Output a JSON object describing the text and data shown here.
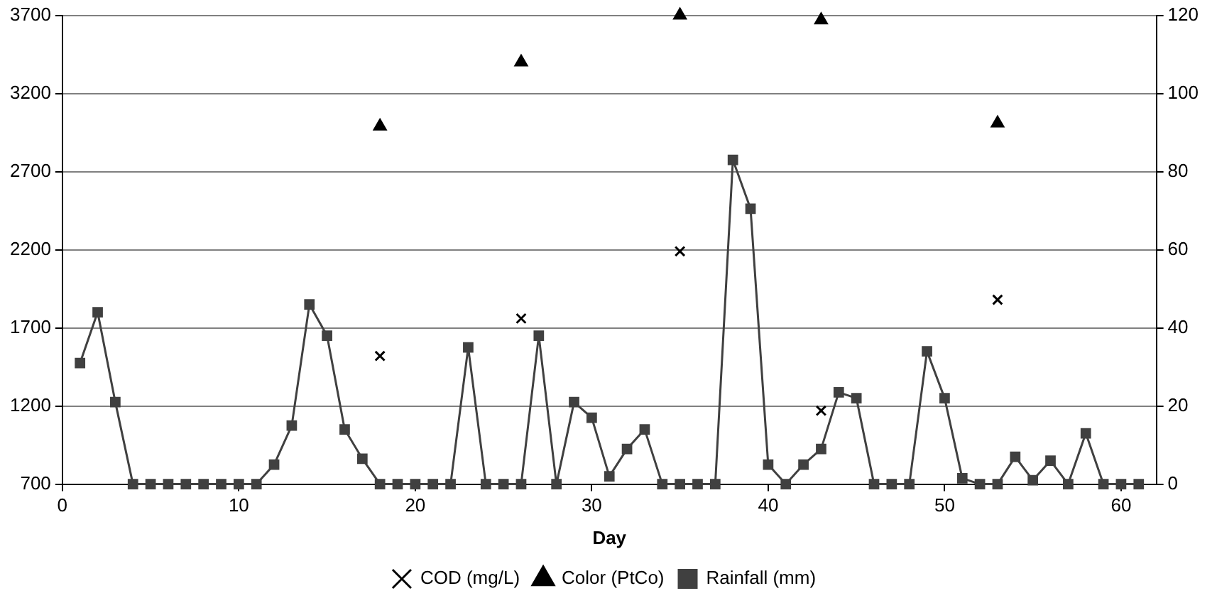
{
  "chart_data": {
    "type": "scatter",
    "xlabel": "Day",
    "xlim": [
      0,
      62
    ],
    "xticks": [
      0,
      10,
      20,
      30,
      40,
      50,
      60
    ],
    "ylim": [
      700,
      3700
    ],
    "yticks": [
      700,
      1200,
      1700,
      2200,
      2700,
      3200,
      3700
    ],
    "y2lim": [
      0,
      120
    ],
    "y2ticks": [
      0,
      20,
      40,
      60,
      80,
      100,
      120
    ],
    "grid": "y",
    "legend": "bottom",
    "series": [
      {
        "name": "COD (mg/L)",
        "type": "scatter",
        "marker": "cross",
        "color": "#000000",
        "x": [
          18,
          26,
          35,
          43,
          53
        ],
        "values": [
          1520,
          1760,
          2190,
          1170,
          1880
        ]
      },
      {
        "name": "Color (PtCo)",
        "type": "scatter",
        "marker": "triangle",
        "color": "#000000",
        "x": [
          18,
          26,
          35,
          43,
          53
        ],
        "values": [
          2990,
          3400,
          3700,
          3670,
          3010
        ]
      },
      {
        "name": "Rainfall (mm)",
        "type": "line",
        "marker": "square",
        "color": "#404040",
        "axis": "y2",
        "x": [
          1,
          2,
          3,
          4,
          5,
          6,
          7,
          8,
          9,
          10,
          11,
          12,
          13,
          14,
          15,
          16,
          17,
          18,
          19,
          20,
          21,
          22,
          23,
          24,
          25,
          26,
          27,
          28,
          29,
          30,
          31,
          32,
          33,
          34,
          35,
          36,
          37,
          38,
          39,
          40,
          41,
          42,
          43,
          44,
          45,
          46,
          47,
          48,
          49,
          50,
          51,
          52,
          53,
          54,
          55,
          56,
          57,
          58,
          59,
          60,
          61
        ],
        "values": [
          31,
          44,
          21,
          0,
          0,
          0,
          0,
          0,
          0,
          0,
          0,
          5,
          15,
          46,
          38,
          14,
          6.5,
          0,
          0,
          0,
          0,
          0,
          35,
          0,
          0,
          0,
          38,
          0,
          21,
          17,
          2,
          9,
          14,
          0,
          0,
          0,
          0,
          83,
          70.5,
          5,
          0,
          5,
          9,
          23.5,
          22,
          0,
          0,
          0,
          34,
          22,
          1.5,
          0,
          0,
          7,
          1,
          6,
          0,
          13,
          0,
          0,
          0
        ]
      }
    ]
  }
}
